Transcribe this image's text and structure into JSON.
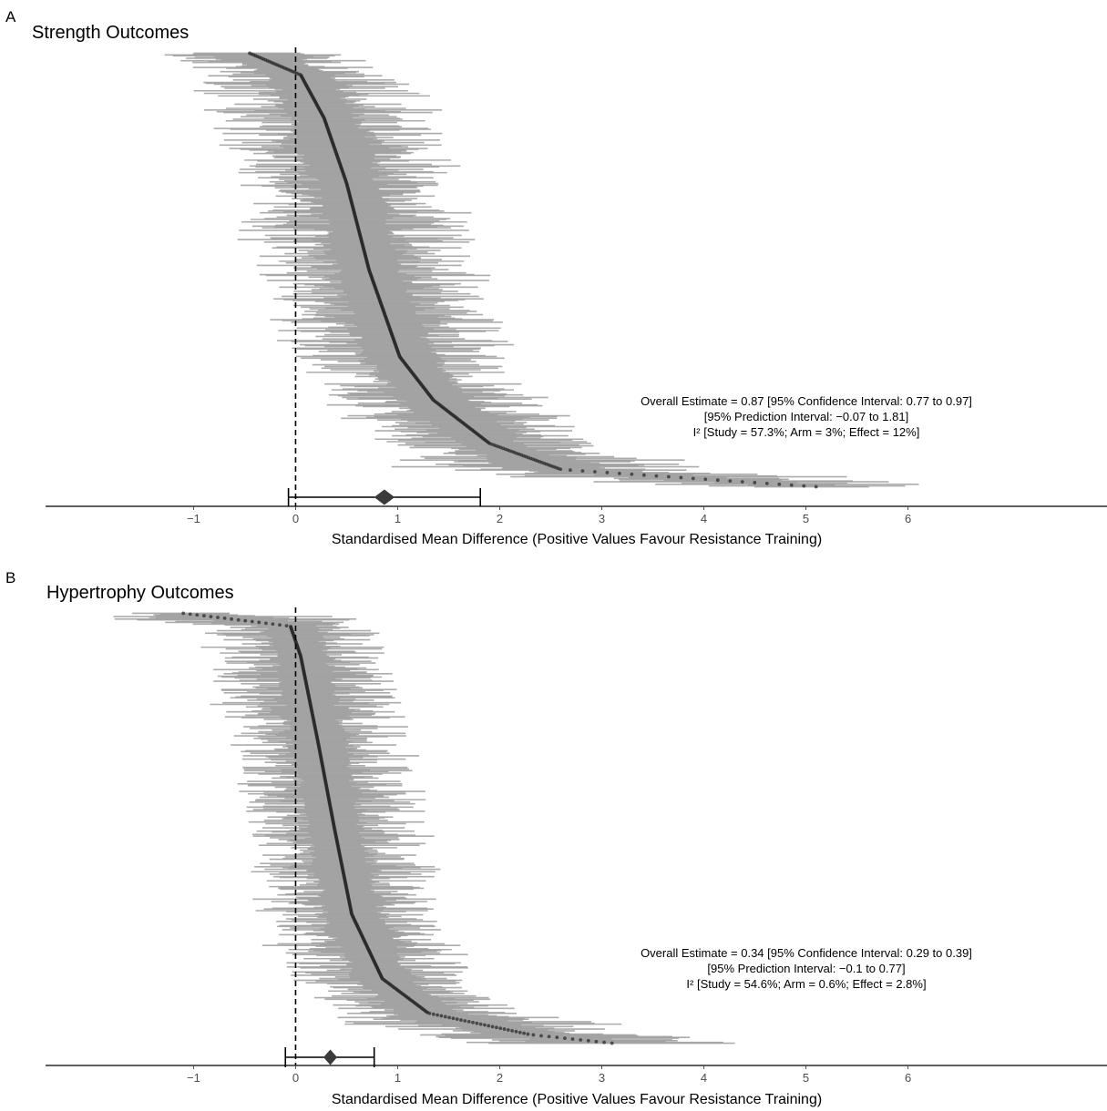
{
  "chart_data": [
    {
      "type": "forest",
      "panel_label": "A",
      "title": "Strength Outcomes",
      "xlabel": "Standardised Mean Difference (Positive Values Favour Resistance Training)",
      "xticks": [
        -1,
        0,
        1,
        2,
        3,
        4,
        5,
        6
      ],
      "xtick_labels": [
        "−1",
        "0",
        "1",
        "2",
        "3",
        "4",
        "5",
        "6"
      ],
      "xlim": [
        -2.45,
        7.95
      ],
      "reference_line_x": 0,
      "n_effects": 520,
      "effect_quantiles": [
        {
          "q": 0.0,
          "smd": -0.45
        },
        {
          "q": 0.05,
          "smd": 0.05
        },
        {
          "q": 0.15,
          "smd": 0.28
        },
        {
          "q": 0.3,
          "smd": 0.5
        },
        {
          "q": 0.5,
          "smd": 0.72
        },
        {
          "q": 0.7,
          "smd": 1.02
        },
        {
          "q": 0.8,
          "smd": 1.35
        },
        {
          "q": 0.9,
          "smd": 1.9
        },
        {
          "q": 0.96,
          "smd": 2.6
        },
        {
          "q": 1.0,
          "smd": 5.1
        }
      ],
      "ci_half_width_range": [
        0.3,
        1.1
      ],
      "overall_estimate": 0.87,
      "confidence_interval": [
        0.77,
        0.97
      ],
      "prediction_interval": [
        -0.07,
        1.81
      ],
      "annotation_lines": [
        "Overall Estimate = 0.87 [95% Confidence Interval: 0.77 to 0.97]",
        "[95% Prediction Interval: −0.07 to 1.81]",
        "I² [Study = 57.3%; Arm = 3%; Effect = 12%]"
      ]
    },
    {
      "type": "forest",
      "panel_label": "B",
      "title": "Hypertrophy Outcomes",
      "xlabel": "Standardised Mean Difference (Positive Values Favour Resistance Training)",
      "xticks": [
        -1,
        0,
        1,
        2,
        3,
        4,
        5,
        6
      ],
      "xtick_labels": [
        "−1",
        "0",
        "1",
        "2",
        "3",
        "4",
        "5",
        "6"
      ],
      "xlim": [
        -2.45,
        7.95
      ],
      "reference_line_x": 0,
      "n_effects": 520,
      "effect_quantiles": [
        {
          "q": 0.0,
          "smd": -1.1
        },
        {
          "q": 0.03,
          "smd": -0.05
        },
        {
          "q": 0.1,
          "smd": 0.05
        },
        {
          "q": 0.3,
          "smd": 0.22
        },
        {
          "q": 0.5,
          "smd": 0.38
        },
        {
          "q": 0.7,
          "smd": 0.55
        },
        {
          "q": 0.85,
          "smd": 0.85
        },
        {
          "q": 0.93,
          "smd": 1.3
        },
        {
          "q": 0.98,
          "smd": 2.3
        },
        {
          "q": 1.0,
          "smd": 3.1
        }
      ],
      "ci_half_width_range": [
        0.25,
        0.9
      ],
      "overall_estimate": 0.34,
      "confidence_interval": [
        0.29,
        0.39
      ],
      "prediction_interval": [
        -0.1,
        0.77
      ],
      "annotation_lines": [
        "Overall Estimate = 0.34 [95% Confidence Interval: 0.29 to 0.39]",
        "[95% Prediction Interval: −0.1 to 0.77]",
        "I² [Study = 54.6%; Arm = 0.6%; Effect = 2.8%]"
      ]
    }
  ],
  "colors": {
    "ci_bar": "#9e9e9e",
    "point": "#2b2b2b",
    "summary": "#3a3a3a",
    "axis": "#000000"
  }
}
